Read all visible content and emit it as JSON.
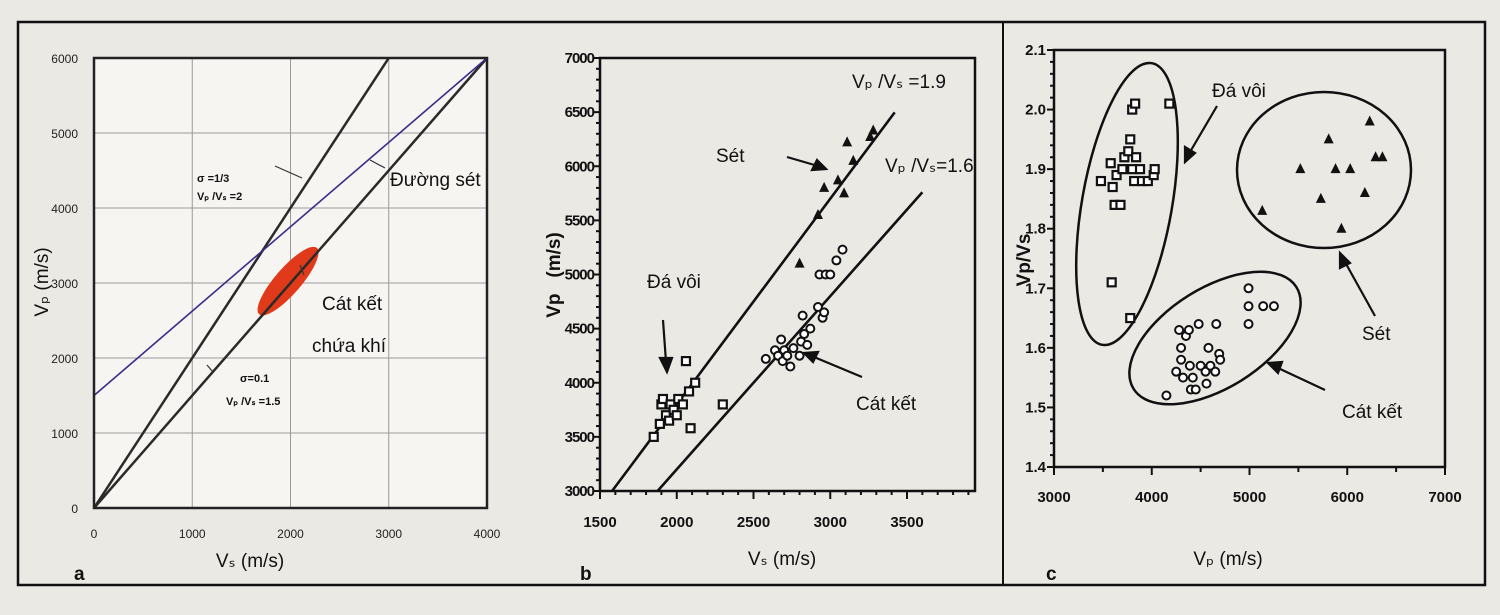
{
  "colors": {
    "paper": "#ebe9e4",
    "plot": "#f6f5f2",
    "ink": "#111111",
    "grid": "#9a9a9a",
    "mudrock_line": "#3a2d8a",
    "gas_sand": "#e03a1a"
  },
  "chart_data": [
    {
      "panel": "a",
      "type": "line",
      "xlabel": "Vₛ (m/s)",
      "ylabel": "Vₚ (m/s)",
      "xlim": [
        0,
        4000
      ],
      "ylim": [
        0,
        6000
      ],
      "xticks": [
        "0",
        "1000",
        "2000",
        "3000",
        "4000"
      ],
      "yticks": [
        "0",
        "1000",
        "2000",
        "3000",
        "4000",
        "5000",
        "6000"
      ],
      "grid": true,
      "series": [
        {
          "name": "σ=1/3, Vp/Vs=2",
          "points": [
            [
              0,
              0
            ],
            [
              3000,
              6000
            ]
          ]
        },
        {
          "name": "σ=0.1, Vp/Vs=1.5",
          "points": [
            [
              0,
              0
            ],
            [
              4000,
              6000
            ]
          ]
        },
        {
          "name": "Đường sét",
          "points": [
            [
              0,
              1500
            ],
            [
              4000,
              6000
            ]
          ]
        }
      ],
      "region": {
        "name": "Cát kết chứa khí",
        "vs_range": [
          1700,
          2250
        ],
        "vp_range": [
          2600,
          3450
        ]
      },
      "annotations": {
        "line1_sigma": "σ =1/3",
        "line1_ratio": "Vₚ /Vₛ =2",
        "line2_sigma": "σ=0.1",
        "line2_ratio": "Vₚ /Vₛ =1.5",
        "mudrock": "Đường sét",
        "gas_sand_1": "Cát kết",
        "gas_sand_2": "chứa khí"
      }
    },
    {
      "panel": "b",
      "type": "scatter",
      "xlabel": "Vₛ (m/s)",
      "ylabel": "Vp   (m/s)",
      "xlim": [
        1500,
        4000
      ],
      "ylim": [
        3000,
        7000
      ],
      "xticks": [
        "1500",
        "2000",
        "2500",
        "3000",
        "3500"
      ],
      "yticks": [
        "3000",
        "3500",
        "4000",
        "4500",
        "5000",
        "5500",
        "6000",
        "6500",
        "7000"
      ],
      "grid": false,
      "lines": [
        {
          "name": "Vₚ /Vₛ =1.9",
          "ratio": 1.9,
          "vs_range": [
            1580,
            3420
          ]
        },
        {
          "name": "Vₚ /Vₛ=1.6",
          "ratio": 1.6,
          "vs_range": [
            1875,
            3600
          ]
        }
      ],
      "series": [
        {
          "name": "Đá vôi",
          "marker": "square",
          "points": [
            [
              1850,
              3500
            ],
            [
              1890,
              3620
            ],
            [
              1900,
              3800
            ],
            [
              1910,
              3850
            ],
            [
              1930,
              3700
            ],
            [
              1950,
              3650
            ],
            [
              1960,
              3800
            ],
            [
              1980,
              3750
            ],
            [
              2000,
              3700
            ],
            [
              2010,
              3850
            ],
            [
              2040,
              3800
            ],
            [
              2060,
              4200
            ],
            [
              2080,
              3920
            ],
            [
              2090,
              3580
            ],
            [
              2120,
              4000
            ],
            [
              2300,
              3800
            ]
          ]
        },
        {
          "name": "Cát kết",
          "marker": "circle",
          "points": [
            [
              2580,
              4220
            ],
            [
              2640,
              4300
            ],
            [
              2660,
              4250
            ],
            [
              2680,
              4400
            ],
            [
              2690,
              4200
            ],
            [
              2700,
              4300
            ],
            [
              2720,
              4250
            ],
            [
              2740,
              4150
            ],
            [
              2760,
              4320
            ],
            [
              2800,
              4250
            ],
            [
              2810,
              4380
            ],
            [
              2820,
              4620
            ],
            [
              2830,
              4450
            ],
            [
              2850,
              4350
            ],
            [
              2870,
              4500
            ],
            [
              2920,
              4700
            ],
            [
              2950,
              4600
            ],
            [
              2960,
              4650
            ],
            [
              2930,
              5000
            ],
            [
              2970,
              5000
            ],
            [
              3000,
              5000
            ],
            [
              3040,
              5130
            ],
            [
              3080,
              5230
            ]
          ]
        },
        {
          "name": "Sét",
          "marker": "triangle",
          "points": [
            [
              2800,
              5100
            ],
            [
              2920,
              5550
            ],
            [
              2960,
              5800
            ],
            [
              3050,
              5870
            ],
            [
              3090,
              5750
            ],
            [
              3150,
              6050
            ],
            [
              3110,
              6220
            ],
            [
              3260,
              6270
            ],
            [
              3280,
              6330
            ]
          ]
        }
      ]
    },
    {
      "panel": "c",
      "type": "scatter",
      "xlabel": "Vₚ (m/s)",
      "ylabel": "Vp/Vs",
      "xlim": [
        3000,
        7000
      ],
      "ylim": [
        1.4,
        2.1
      ],
      "xticks": [
        "3000",
        "4000",
        "5000",
        "6000",
        "7000"
      ],
      "yticks": [
        "1.4",
        "1.5",
        "1.6",
        "1.7",
        "1.8",
        "1.9",
        "2.0",
        "2.1"
      ],
      "grid": false,
      "series": [
        {
          "name": "Đá vôi",
          "marker": "square",
          "points": [
            [
              3480,
              1.88
            ],
            [
              3580,
              1.91
            ],
            [
              3600,
              1.87
            ],
            [
              3620,
              1.84
            ],
            [
              3680,
              1.84
            ],
            [
              3640,
              1.89
            ],
            [
              3700,
              1.9
            ],
            [
              3720,
              1.92
            ],
            [
              3760,
              1.93
            ],
            [
              3780,
              1.95
            ],
            [
              3800,
              1.9
            ],
            [
              3820,
              1.88
            ],
            [
              3840,
              1.92
            ],
            [
              3880,
              1.9
            ],
            [
              3900,
              1.88
            ],
            [
              3960,
              1.88
            ],
            [
              4020,
              1.89
            ],
            [
              4030,
              1.9
            ],
            [
              3800,
              2.0
            ],
            [
              3830,
              2.01
            ],
            [
              4180,
              2.01
            ],
            [
              3590,
              1.71
            ],
            [
              3780,
              1.65
            ]
          ]
        },
        {
          "name": "Sét",
          "marker": "triangle",
          "points": [
            [
              5130,
              1.83
            ],
            [
              5520,
              1.9
            ],
            [
              5730,
              1.85
            ],
            [
              5810,
              1.95
            ],
            [
              5880,
              1.9
            ],
            [
              5940,
              1.8
            ],
            [
              6030,
              1.9
            ],
            [
              6180,
              1.86
            ],
            [
              6230,
              1.98
            ],
            [
              6290,
              1.92
            ],
            [
              6360,
              1.92
            ]
          ]
        },
        {
          "name": "Cát kết",
          "marker": "circle",
          "points": [
            [
              4150,
              1.52
            ],
            [
              4250,
              1.56
            ],
            [
              4280,
              1.63
            ],
            [
              4300,
              1.6
            ],
            [
              4300,
              1.58
            ],
            [
              4320,
              1.55
            ],
            [
              4350,
              1.62
            ],
            [
              4380,
              1.63
            ],
            [
              4390,
              1.57
            ],
            [
              4400,
              1.53
            ],
            [
              4420,
              1.55
            ],
            [
              4450,
              1.53
            ],
            [
              4480,
              1.64
            ],
            [
              4500,
              1.57
            ],
            [
              4550,
              1.56
            ],
            [
              4560,
              1.54
            ],
            [
              4580,
              1.6
            ],
            [
              4600,
              1.57
            ],
            [
              4650,
              1.56
            ],
            [
              4660,
              1.64
            ],
            [
              4690,
              1.59
            ],
            [
              4700,
              1.58
            ],
            [
              4990,
              1.7
            ],
            [
              4990,
              1.67
            ],
            [
              4990,
              1.64
            ],
            [
              5140,
              1.67
            ],
            [
              5250,
              1.67
            ]
          ]
        }
      ]
    }
  ],
  "panel_labels": [
    "a",
    "b",
    "c"
  ]
}
